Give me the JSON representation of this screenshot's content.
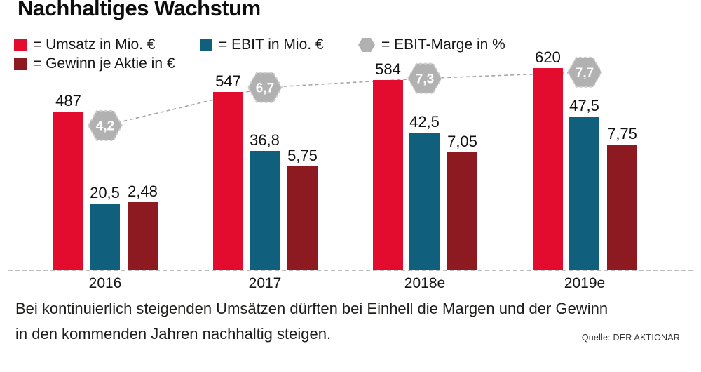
{
  "title": "Nachhaltiges Wachstum",
  "legend": [
    {
      "label": "= Umsatz in Mio. €",
      "swatch": "square",
      "color": "#e30c2e"
    },
    {
      "label": "= EBIT in Mio. €",
      "swatch": "square",
      "color": "#0f5f7d"
    },
    {
      "label": "= EBIT-Marge in %",
      "swatch": "hexagon",
      "color": "#b1b1b1"
    },
    {
      "label": "= Gewinn je Aktie in €",
      "swatch": "square",
      "color": "#8e1a21"
    }
  ],
  "chart_data": {
    "type": "bar",
    "title": "Nachhaltiges Wachstum",
    "categories": [
      "2016",
      "2017",
      "2018e",
      "2019e"
    ],
    "series": [
      {
        "key": "umsatz",
        "name": "Umsatz in Mio. €",
        "render": "bar",
        "color": "#e30c2e",
        "values": [
          487,
          547,
          584,
          620
        ],
        "labels": [
          "487",
          "547",
          "584",
          "620"
        ]
      },
      {
        "key": "ebit",
        "name": "EBIT in Mio. €",
        "render": "bar",
        "color": "#0f5f7d",
        "values": [
          20.5,
          36.8,
          42.5,
          47.5
        ],
        "labels": [
          "20,5",
          "36,8",
          "42,5",
          "47,5"
        ]
      },
      {
        "key": "eps",
        "name": "Gewinn je Aktie in €",
        "render": "bar",
        "color": "#8e1a21",
        "values": [
          2.48,
          5.75,
          7.05,
          7.75
        ],
        "labels": [
          "2,48",
          "5,75",
          "7,05",
          "7,75"
        ]
      },
      {
        "key": "marge",
        "name": "EBIT-Marge in %",
        "render": "hex-line",
        "color": "#b1b1b1",
        "line_color": "#a6a6a6",
        "values": [
          4.2,
          6.7,
          7.3,
          7.7
        ],
        "labels": [
          "4,2",
          "6,7",
          "7,3",
          "7,7"
        ]
      }
    ],
    "value_labels": true,
    "legend_position": "top",
    "baseline_style": "dashed",
    "grid": false
  },
  "caption": {
    "text": "Bei kontinuierlich steigenden Umsätzen dürften bei Einhell die Margen und der Gewinn in den kommenden Jahren nachhaltig steigen."
  },
  "source": "Quelle: DER AKTIONÄR"
}
